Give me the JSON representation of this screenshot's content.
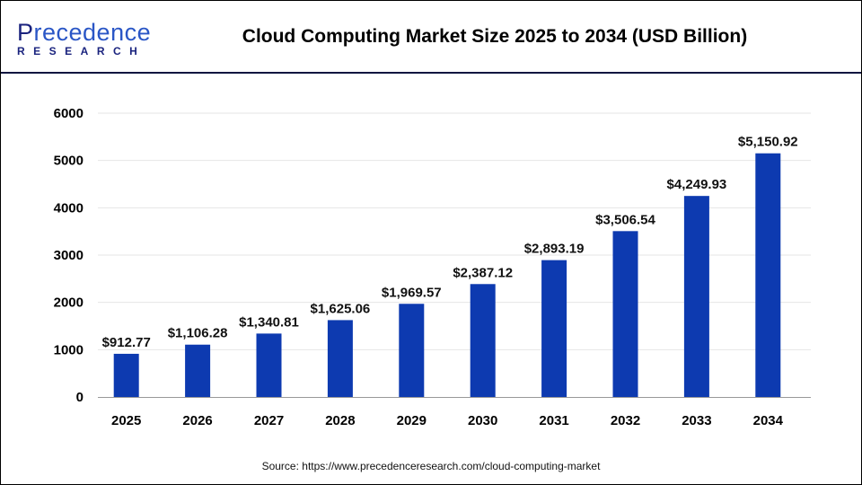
{
  "logo": {
    "line1_first": "P",
    "line1_rest": "recedence",
    "line2": "RESEARCH"
  },
  "header": {
    "title": "Cloud Computing Market Size 2025 to 2034 (USD Billion)"
  },
  "source": "Source: https://www.precedenceresearch.com/cloud-computing-market",
  "chart_data": {
    "type": "bar",
    "title": "Cloud Computing Market Size 2025 to 2034 (USD Billion)",
    "categories": [
      "2025",
      "2026",
      "2027",
      "2028",
      "2029",
      "2030",
      "2031",
      "2032",
      "2033",
      "2034"
    ],
    "values": [
      912.77,
      1106.28,
      1340.81,
      1625.06,
      1969.57,
      2387.12,
      2893.19,
      3506.54,
      4249.93,
      5150.92
    ],
    "labels": [
      "$912.77",
      "$1,106.28",
      "$1,340.81",
      "$1,625.06",
      "$1,969.57",
      "$2,387.12",
      "$2,893.19",
      "$3,506.54",
      "$4,249.93",
      "$5,150.92"
    ],
    "yticks": [
      "0",
      "1000",
      "2000",
      "3000",
      "4000",
      "5000",
      "6000"
    ],
    "ylim": [
      0,
      6000
    ],
    "grid": true,
    "bar_color": "#0d3ab0",
    "xlabel": "",
    "ylabel": ""
  }
}
